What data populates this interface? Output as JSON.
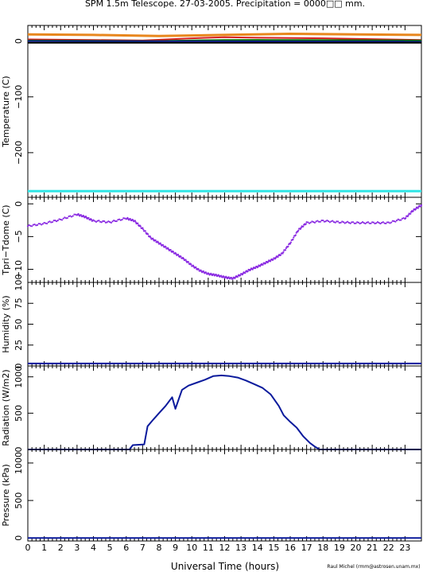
{
  "title": "SPM 1.5m Telescope. 27-03-2005. Precipitation = 0000□□ mm.",
  "xlabel": "Universal Time (hours)",
  "credit": "Raul Michel (rmm@astrosen.unam.mx)",
  "colors": {
    "orange": "#e8871e",
    "red": "#d62020",
    "green": "#1fb01f",
    "dark_green": "#0b6e0b",
    "navy": "#0a1a8c",
    "black": "#000000",
    "cyan": "#30e6e6",
    "purple": "#8a2be2",
    "blue": "#0a1a9c"
  },
  "chart_data": [
    {
      "type": "line",
      "ylabel": "Temperature (C)",
      "xlim": [
        0,
        24
      ],
      "ylim": [
        -280,
        28
      ],
      "yticks": [
        0,
        -100,
        -200
      ],
      "ytick_labels": [
        "0",
        "−100",
        "−200"
      ],
      "series": [
        {
          "color": "orange",
          "x": [
            0,
            4,
            8,
            12,
            16,
            20,
            24
          ],
          "values": [
            12,
            11,
            9,
            11,
            13,
            12,
            11
          ]
        },
        {
          "color": "red",
          "x": [
            0,
            4,
            7,
            10,
            12,
            14,
            18,
            24
          ],
          "values": [
            3,
            2,
            1,
            5,
            7,
            6,
            5,
            2
          ]
        },
        {
          "color": "green",
          "x": [
            0,
            6,
            10,
            14,
            18,
            24
          ],
          "values": [
            0,
            -1,
            1,
            2,
            0,
            -2
          ]
        },
        {
          "color": "dark_green",
          "x": [
            0,
            8,
            12,
            16,
            24
          ],
          "values": [
            1,
            0,
            2,
            2,
            1
          ]
        },
        {
          "color": "navy",
          "x": [
            0,
            24
          ],
          "values": [
            0,
            -1
          ]
        },
        {
          "color": "black",
          "x": [
            0,
            24
          ],
          "values": [
            -3,
            -3
          ]
        },
        {
          "color": "cyan",
          "x": [
            0,
            24
          ],
          "values": [
            -269,
            -269
          ]
        }
      ]
    },
    {
      "type": "scatter",
      "ylabel": "Tpri−Tdome (C)",
      "xlim": [
        0,
        24
      ],
      "ylim": [
        -12,
        1
      ],
      "yticks": [
        0,
        -5,
        -10
      ],
      "ytick_labels": [
        "0",
        "−5",
        "−10"
      ],
      "series": [
        {
          "color": "purple",
          "x": [
            0,
            1,
            2,
            3,
            3.5,
            4,
            5,
            6,
            6.5,
            7,
            7.5,
            8,
            8.5,
            9,
            9.5,
            10,
            10.5,
            11,
            11.5,
            12,
            12.5,
            13,
            13.5,
            14,
            14.5,
            15,
            15.5,
            16,
            16.5,
            17,
            18,
            19,
            20,
            21,
            22,
            23,
            23.5,
            24
          ],
          "values": [
            -3.4,
            -3.0,
            -2.4,
            -1.6,
            -2.0,
            -2.6,
            -2.8,
            -2.2,
            -2.6,
            -3.8,
            -5.2,
            -6.0,
            -6.8,
            -7.6,
            -8.4,
            -9.4,
            -10.2,
            -10.7,
            -10.9,
            -11.2,
            -11.4,
            -10.8,
            -10.1,
            -9.6,
            -9.0,
            -8.4,
            -7.6,
            -6.0,
            -4.0,
            -2.9,
            -2.6,
            -2.8,
            -2.9,
            -2.9,
            -2.9,
            -2.2,
            -1.0,
            -0.2
          ]
        }
      ]
    },
    {
      "type": "line",
      "ylabel": "Humidity (%)",
      "xlim": [
        0,
        24
      ],
      "ylim": [
        0,
        100
      ],
      "yticks": [
        0,
        25,
        50,
        75,
        100
      ],
      "ytick_labels": [
        "0",
        "25",
        "50",
        "75",
        "100"
      ],
      "series": [
        {
          "color": "blue",
          "x": [
            0,
            4,
            8,
            12,
            16,
            20,
            24
          ],
          "values": [
            3,
            3,
            3,
            3,
            3,
            3,
            3
          ]
        }
      ]
    },
    {
      "type": "line",
      "ylabel": "Radiation (W/m2)",
      "xlim": [
        0,
        24
      ],
      "ylim": [
        0,
        1150
      ],
      "yticks": [
        0,
        500,
        1000
      ],
      "ytick_labels": [
        "0",
        "500",
        "1000"
      ],
      "series": [
        {
          "color": "blue",
          "x": [
            0,
            6.2,
            6.4,
            7.1,
            7.3,
            7.6,
            8.0,
            8.4,
            8.8,
            9.0,
            9.2,
            9.4,
            9.8,
            10.3,
            10.8,
            11.3,
            11.8,
            12.3,
            12.8,
            13.3,
            13.8,
            14.3,
            14.8,
            15.3,
            15.6,
            16.0,
            16.4,
            16.8,
            17.2,
            17.5,
            17.8,
            24
          ],
          "values": [
            0,
            0,
            60,
            70,
            320,
            400,
            500,
            600,
            720,
            560,
            690,
            820,
            880,
            920,
            960,
            1010,
            1020,
            1010,
            990,
            950,
            900,
            850,
            760,
            600,
            470,
            380,
            300,
            180,
            90,
            40,
            0,
            0
          ]
        }
      ]
    },
    {
      "type": "line",
      "ylabel": "Pressure (kPa)",
      "xlim": [
        0,
        24
      ],
      "ylim": [
        -40,
        1180
      ],
      "yticks": [
        0,
        500,
        1000
      ],
      "ytick_labels": [
        "0",
        "500",
        "1000"
      ],
      "series": [
        {
          "color": "blue",
          "x": [
            0,
            24
          ],
          "values": [
            0,
            0
          ]
        }
      ]
    }
  ],
  "xaxis": {
    "ticks": [
      0,
      1,
      2,
      3,
      4,
      5,
      6,
      7,
      8,
      9,
      10,
      11,
      12,
      13,
      14,
      15,
      16,
      17,
      18,
      19,
      20,
      21,
      22,
      23
    ],
    "tick_labels": [
      "0",
      "1",
      "2",
      "3",
      "4",
      "5",
      "6",
      "7",
      "8",
      "9",
      "10",
      "11",
      "12",
      "13",
      "14",
      "15",
      "16",
      "17",
      "18",
      "19",
      "20",
      "21",
      "22",
      "23"
    ]
  }
}
